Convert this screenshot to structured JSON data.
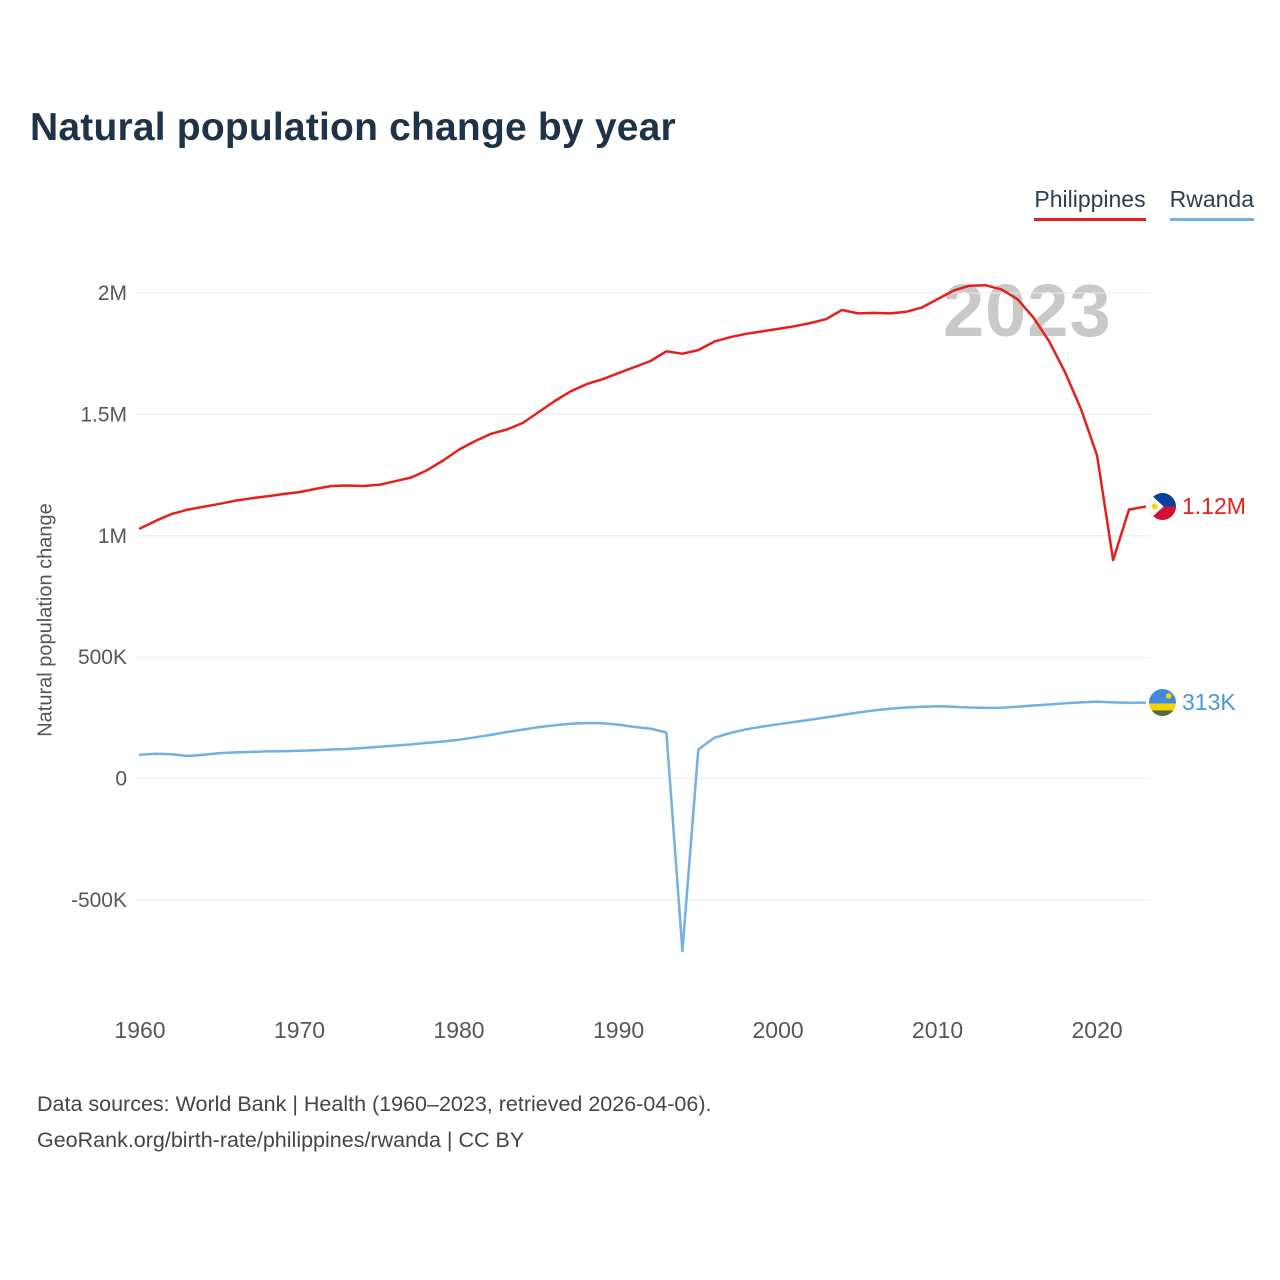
{
  "header": {
    "title": "Natural population change by year"
  },
  "legend": [
    {
      "label": "Philippines",
      "color": "#e2211c"
    },
    {
      "label": "Rwanda",
      "color": "#74b0e2"
    }
  ],
  "watermark": "2023",
  "end_labels": {
    "philippines": {
      "value": "1.12M",
      "flag": "philippines-flag"
    },
    "rwanda": {
      "value": "313K",
      "flag": "rwanda-flag"
    }
  },
  "footer": {
    "line1": "Data sources: World Bank | Health (1960–2023, retrieved 2026-04-06).",
    "line2": "GeoRank.org/birth-rate/philippines/rwanda | CC BY"
  },
  "chart_data": {
    "type": "line",
    "title": "Natural population change by year",
    "xlabel": "",
    "ylabel": "Natural population change",
    "legend_position": "top-right",
    "grid": "horizontal",
    "xlim": [
      1960,
      2023
    ],
    "ylim": [
      -780000,
      2100000
    ],
    "x_ticks": [
      1960,
      1970,
      1980,
      1990,
      2000,
      2010,
      2020
    ],
    "y_ticks": [
      {
        "value": 2000000,
        "label": "2M"
      },
      {
        "value": 1500000,
        "label": "1.5M"
      },
      {
        "value": 1000000,
        "label": "1M"
      },
      {
        "value": 500000,
        "label": "500K"
      },
      {
        "value": 0,
        "label": "0"
      },
      {
        "value": -500000,
        "label": "-500K"
      }
    ],
    "years": [
      1960,
      1961,
      1962,
      1963,
      1964,
      1965,
      1966,
      1967,
      1968,
      1969,
      1970,
      1971,
      1972,
      1973,
      1974,
      1975,
      1976,
      1977,
      1978,
      1979,
      1980,
      1981,
      1982,
      1983,
      1984,
      1985,
      1986,
      1987,
      1988,
      1989,
      1990,
      1991,
      1992,
      1993,
      1994,
      1995,
      1996,
      1997,
      1998,
      1999,
      2000,
      2001,
      2002,
      2003,
      2004,
      2005,
      2006,
      2007,
      2008,
      2009,
      2010,
      2011,
      2012,
      2013,
      2014,
      2015,
      2016,
      2017,
      2018,
      2019,
      2020,
      2021,
      2022,
      2023
    ],
    "series": [
      {
        "name": "Philippines",
        "color": "#e2211c",
        "end_label": "1.12M",
        "values": [
          1030000,
          1062000,
          1090000,
          1108000,
          1120000,
          1132000,
          1145000,
          1155000,
          1163000,
          1172000,
          1180000,
          1193000,
          1205000,
          1207000,
          1205000,
          1210000,
          1225000,
          1240000,
          1270000,
          1310000,
          1355000,
          1390000,
          1420000,
          1438000,
          1465000,
          1510000,
          1555000,
          1595000,
          1625000,
          1645000,
          1670000,
          1695000,
          1720000,
          1760000,
          1750000,
          1765000,
          1800000,
          1818000,
          1832000,
          1842000,
          1852000,
          1863000,
          1876000,
          1892000,
          1930000,
          1916000,
          1918000,
          1916000,
          1922000,
          1940000,
          1975000,
          2010000,
          2030000,
          2032000,
          2015000,
          1975000,
          1900000,
          1800000,
          1672000,
          1520000,
          1330000,
          900000,
          1108000,
          1120000
        ]
      },
      {
        "name": "Rwanda",
        "color": "#74b0e2",
        "end_label": "313K",
        "values": [
          98000,
          102000,
          100000,
          93000,
          98000,
          105000,
          108000,
          110000,
          112000,
          113000,
          115000,
          117000,
          120000,
          122000,
          126000,
          131000,
          136000,
          141000,
          147000,
          153000,
          160000,
          170000,
          180000,
          192000,
          202000,
          212000,
          220000,
          226000,
          229000,
          228000,
          222000,
          213000,
          206000,
          190000,
          -710000,
          120000,
          168000,
          188000,
          203000,
          214000,
          224000,
          233000,
          242000,
          252000,
          262000,
          272000,
          281000,
          288000,
          293000,
          296000,
          298000,
          296000,
          293000,
          291000,
          292000,
          296000,
          301000,
          305000,
          310000,
          314000,
          317000,
          314000,
          312000,
          313000
        ]
      }
    ]
  }
}
